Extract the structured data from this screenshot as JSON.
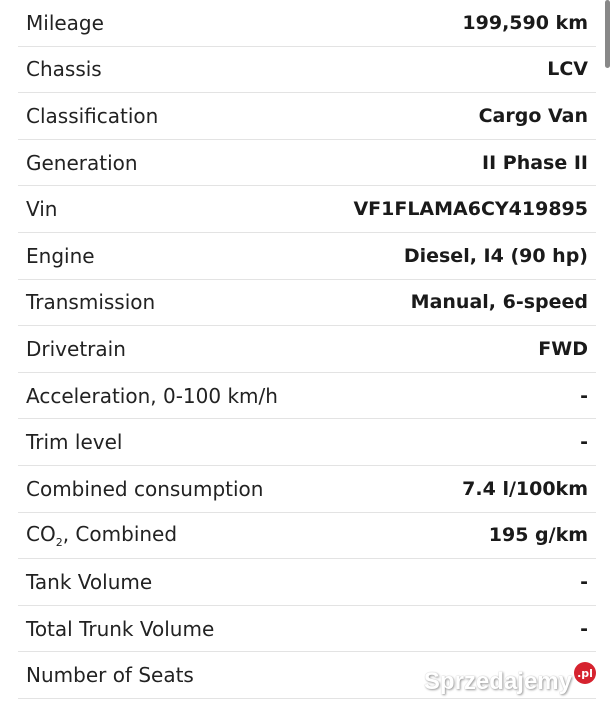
{
  "specs": [
    {
      "label": "Mileage",
      "value": "199,590 km"
    },
    {
      "label": "Chassis",
      "value": "LCV"
    },
    {
      "label": "Classification",
      "value": "Cargo Van"
    },
    {
      "label": "Generation",
      "value": "II Phase II"
    },
    {
      "label": "Vin",
      "value": "VF1FLAMA6CY419895"
    },
    {
      "label": "Engine",
      "value": "Diesel, I4 (90 hp)"
    },
    {
      "label": "Transmission",
      "value": "Manual, 6-speed"
    },
    {
      "label": "Drivetrain",
      "value": "FWD"
    },
    {
      "label": "Acceleration, 0-100 km/h",
      "value": "-"
    },
    {
      "label": "Trim level",
      "value": "-"
    },
    {
      "label": "Combined consumption",
      "value": "7.4 l/100km"
    },
    {
      "label": "CO",
      "label_sub": "2",
      "label_suffix": ", Combined",
      "value": "195 g/km"
    },
    {
      "label": "Tank Volume",
      "value": "-"
    },
    {
      "label": "Total Trunk Volume",
      "value": "-"
    },
    {
      "label": "Number of Seats",
      "value": ""
    }
  ],
  "watermark": {
    "text": "Sprzedajemy",
    "badge": ".pl"
  }
}
